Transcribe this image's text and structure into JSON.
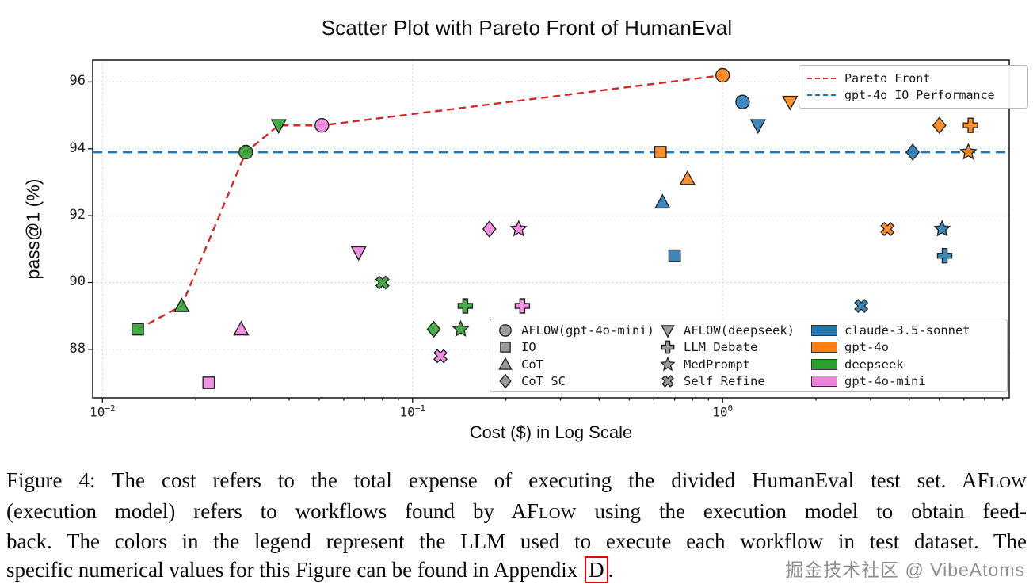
{
  "chart_data": {
    "type": "scatter",
    "title": "Scatter Plot with Pareto Front of HumanEval",
    "xlabel": "Cost ($) in Log Scale",
    "ylabel": "pass@1 (%)",
    "x_scale": "log",
    "xlim": [
      0.0093,
      8.4
    ],
    "ylim": [
      86.55,
      96.65
    ],
    "grid": true,
    "x_ticks": [
      {
        "value": 0.01,
        "base": "10",
        "exp": "−2"
      },
      {
        "value": 0.1,
        "base": "10",
        "exp": "−1"
      },
      {
        "value": 1,
        "base": "10",
        "exp": "0"
      }
    ],
    "y_ticks": [
      88,
      90,
      92,
      94,
      96
    ],
    "pareto_front": {
      "label": "Pareto Front",
      "color": "#d62728",
      "style": "dashed",
      "points": [
        [
          0.013,
          88.6
        ],
        [
          0.018,
          89.3
        ],
        [
          0.029,
          93.9
        ],
        [
          0.037,
          94.7
        ],
        [
          0.051,
          94.7
        ],
        [
          1.0,
          96.2
        ]
      ]
    },
    "reference_lines": [
      {
        "label": "gpt-4o IO Performance",
        "y": 93.9,
        "color": "#1f77b4",
        "style": "dashed"
      }
    ],
    "top_legend": [
      {
        "label": "Pareto Front",
        "color": "#d62728"
      },
      {
        "label": "gpt-4o IO Performance",
        "color": "#1f77b4"
      }
    ],
    "method_markers": [
      {
        "method": "AFLOW(gpt-4o-mini)",
        "shape": "circle"
      },
      {
        "method": "IO",
        "shape": "square"
      },
      {
        "method": "CoT",
        "shape": "triangle-up"
      },
      {
        "method": "CoT SC",
        "shape": "diamond"
      },
      {
        "method": "AFLOW(deepseek)",
        "shape": "triangle-down"
      },
      {
        "method": "LLM Debate",
        "shape": "plus"
      },
      {
        "method": "MedPrompt",
        "shape": "star"
      },
      {
        "method": "Self Refine",
        "shape": "x"
      }
    ],
    "model_colors": [
      {
        "model": "claude-3.5-sonnet",
        "color": "#1f77b4"
      },
      {
        "model": "gpt-4o",
        "color": "#ff7f0e"
      },
      {
        "model": "deepseek",
        "color": "#2ca02c"
      },
      {
        "model": "gpt-4o-mini",
        "color": "#ee82dd"
      }
    ],
    "series": [
      {
        "model": "deepseek",
        "points": [
          {
            "method": "IO",
            "x": 0.013,
            "y": 88.6
          },
          {
            "method": "CoT",
            "x": 0.018,
            "y": 89.3
          },
          {
            "method": "AFLOW(gpt-4o-mini)",
            "x": 0.029,
            "y": 93.9
          },
          {
            "method": "AFLOW(deepseek)",
            "x": 0.037,
            "y": 94.7
          },
          {
            "method": "Self Refine",
            "x": 0.08,
            "y": 90.0
          },
          {
            "method": "CoT SC",
            "x": 0.117,
            "y": 88.6
          },
          {
            "method": "MedPrompt",
            "x": 0.143,
            "y": 88.6
          },
          {
            "method": "LLM Debate",
            "x": 0.148,
            "y": 89.3
          }
        ]
      },
      {
        "model": "gpt-4o-mini",
        "points": [
          {
            "method": "IO",
            "x": 0.022,
            "y": 87.0
          },
          {
            "method": "CoT",
            "x": 0.028,
            "y": 88.6
          },
          {
            "method": "AFLOW(gpt-4o-mini)",
            "x": 0.051,
            "y": 94.7
          },
          {
            "method": "AFLOW(deepseek)",
            "x": 0.067,
            "y": 90.9
          },
          {
            "method": "Self Refine",
            "x": 0.123,
            "y": 87.8
          },
          {
            "method": "CoT SC",
            "x": 0.177,
            "y": 91.6
          },
          {
            "method": "MedPrompt",
            "x": 0.22,
            "y": 91.6
          },
          {
            "method": "LLM Debate",
            "x": 0.226,
            "y": 89.3
          }
        ]
      },
      {
        "model": "gpt-4o",
        "points": [
          {
            "method": "IO",
            "x": 0.63,
            "y": 93.9
          },
          {
            "method": "CoT",
            "x": 0.77,
            "y": 93.1
          },
          {
            "method": "AFLOW(gpt-4o-mini)",
            "x": 1.0,
            "y": 96.2
          },
          {
            "method": "AFLOW(deepseek)",
            "x": 1.65,
            "y": 95.4
          },
          {
            "method": "Self Refine",
            "x": 3.4,
            "y": 91.6
          },
          {
            "method": "CoT SC",
            "x": 5.0,
            "y": 94.7
          },
          {
            "method": "MedPrompt",
            "x": 6.2,
            "y": 93.9
          },
          {
            "method": "LLM Debate",
            "x": 6.3,
            "y": 94.7
          }
        ]
      },
      {
        "model": "claude-3.5-sonnet",
        "points": [
          {
            "method": "IO",
            "x": 0.7,
            "y": 90.8
          },
          {
            "method": "CoT",
            "x": 0.64,
            "y": 92.4
          },
          {
            "method": "AFLOW(gpt-4o-mini)",
            "x": 1.16,
            "y": 95.4
          },
          {
            "method": "AFLOW(deepseek)",
            "x": 1.3,
            "y": 94.7
          },
          {
            "method": "Self Refine",
            "x": 2.8,
            "y": 89.3
          },
          {
            "method": "CoT SC",
            "x": 4.1,
            "y": 93.9
          },
          {
            "method": "MedPrompt",
            "x": 5.1,
            "y": 91.6
          },
          {
            "method": "LLM Debate",
            "x": 5.2,
            "y": 90.8
          }
        ]
      }
    ]
  },
  "caption": {
    "lines": [
      [
        {
          "t": "Figure 4: The cost refers to the total expense of executing the divided HumanEval test set. AF"
        },
        {
          "t": "LOW",
          "sc": true
        }
      ],
      [
        {
          "t": "(execution model) refers to workflows found by AF"
        },
        {
          "t": "LOW",
          "sc": true
        },
        {
          "t": " using the execution model to obtain feed-"
        }
      ],
      [
        {
          "t": "back. The colors in the legend represent the LLM used to execute each workflow in test dataset. The"
        }
      ],
      [
        {
          "t": "specific numerical values for this Figure can be found in Appendix "
        },
        {
          "t": "D",
          "box": true
        },
        {
          "t": "."
        }
      ]
    ]
  },
  "watermark": "掘金技术社区 @ VibeAtoms"
}
